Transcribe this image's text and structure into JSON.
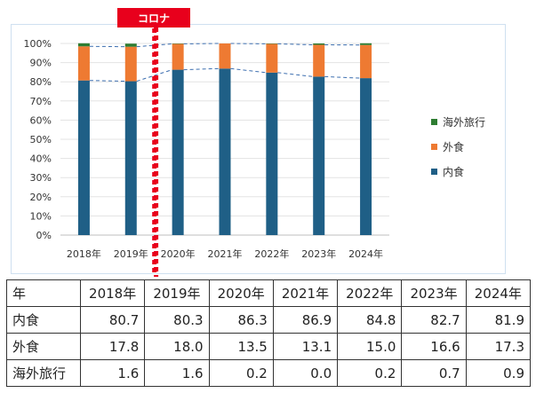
{
  "annotation": {
    "label": "コロナ"
  },
  "chart_data": {
    "type": "bar",
    "stacked": true,
    "categories": [
      "2018年",
      "2019年",
      "2020年",
      "2021年",
      "2022年",
      "2023年",
      "2024年"
    ],
    "series": [
      {
        "name": "内食",
        "color": "#1f5f86",
        "values": [
          80.7,
          80.3,
          86.3,
          86.9,
          84.8,
          82.7,
          81.9
        ]
      },
      {
        "name": "外食",
        "color": "#ee7a32",
        "values": [
          17.8,
          18.0,
          13.5,
          13.1,
          15.0,
          16.6,
          17.3
        ]
      },
      {
        "name": "海外旅行",
        "color": "#2e7d32",
        "values": [
          1.6,
          1.6,
          0.2,
          0.0,
          0.2,
          0.7,
          0.9
        ]
      }
    ],
    "y_ticks": [
      "0%",
      "10%",
      "20%",
      "30%",
      "40%",
      "50%",
      "60%",
      "70%",
      "80%",
      "90%",
      "100%"
    ],
    "ylim": [
      0,
      100
    ],
    "legend": [
      "海外旅行",
      "外食",
      "内食"
    ],
    "legend_position": "right",
    "connector_lines": "dashed",
    "grid": true,
    "marker_after_category": "2019年"
  },
  "table": {
    "header": [
      "年",
      "2018年",
      "2019年",
      "2020年",
      "2021年",
      "2022年",
      "2023年",
      "2024年"
    ],
    "rows": [
      {
        "label": "内食",
        "values": [
          "80.7",
          "80.3",
          "86.3",
          "86.9",
          "84.8",
          "82.7",
          "81.9"
        ]
      },
      {
        "label": "外食",
        "values": [
          "17.8",
          "18.0",
          "13.5",
          "13.1",
          "15.0",
          "16.6",
          "17.3"
        ]
      },
      {
        "label": "海外旅行",
        "values": [
          "1.6",
          "1.6",
          "0.2",
          "0.0",
          "0.2",
          "0.7",
          "0.9"
        ]
      }
    ]
  }
}
